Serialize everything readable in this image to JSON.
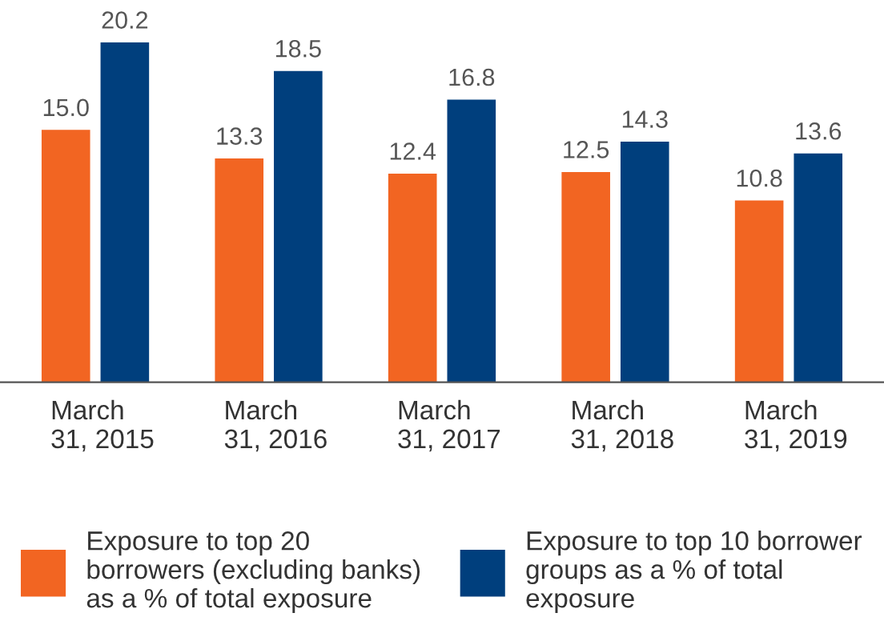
{
  "chart_data": {
    "type": "bar",
    "categories": [
      "March\n31, 2015",
      "March\n31, 2016",
      "March\n31, 2017",
      "March\n31, 2018",
      "March\n31, 2019"
    ],
    "series": [
      {
        "name": "Exposure to top 20\nborrowers (excluding banks)\nas a % of total exposure",
        "color": "#f26522",
        "values": [
          15.0,
          13.3,
          12.4,
          12.5,
          10.8
        ],
        "value_labels": [
          "15.0",
          "13.3",
          "12.4",
          "12.5",
          "10.8"
        ]
      },
      {
        "name": "Exposure to top 10 borrower\ngroups as a % of total\nexposure",
        "color": "#003f7d",
        "values": [
          20.2,
          18.5,
          16.8,
          14.3,
          13.6
        ],
        "value_labels": [
          "20.2",
          "18.5",
          "16.8",
          "14.3",
          "13.6"
        ]
      }
    ],
    "legend": "bottom",
    "grid": false
  }
}
